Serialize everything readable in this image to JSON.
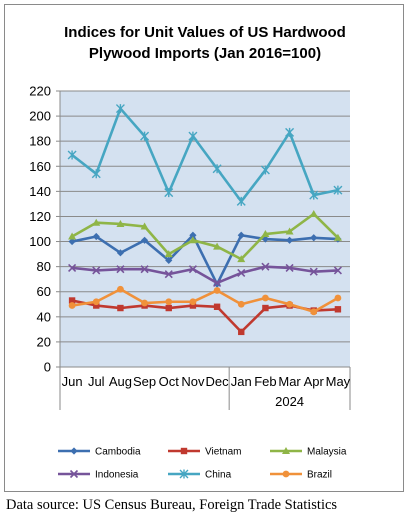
{
  "chart_data": {
    "type": "line",
    "title_lines": [
      "Indices for Unit Values of US Hardwood",
      "Plywood Imports (Jan 2016=100)"
    ],
    "categories": [
      "Jun",
      "Jul",
      "Aug",
      "Sep",
      "Oct",
      "Nov",
      "Dec",
      "Jan",
      "Feb",
      "Mar",
      "Apr",
      "May"
    ],
    "year_group": {
      "label": "2024",
      "start_index": 7
    },
    "ylim": [
      0,
      220
    ],
    "yticks": [
      0,
      20,
      40,
      60,
      80,
      100,
      120,
      140,
      160,
      180,
      200,
      220
    ],
    "grid": "horizontal",
    "plot_background": "#d4e1f0",
    "legend_placement": "bottom",
    "series": [
      {
        "name": "Cambodia",
        "color": "#3d6fb0",
        "marker": "diamond",
        "values": [
          100,
          104,
          91,
          101,
          85,
          105,
          66,
          105,
          102,
          101,
          103,
          102
        ]
      },
      {
        "name": "Vietnam",
        "color": "#c0392f",
        "marker": "square",
        "values": [
          53,
          49,
          47,
          49,
          47,
          49,
          48,
          28,
          47,
          49,
          45,
          46
        ]
      },
      {
        "name": "Malaysia",
        "color": "#8fb547",
        "marker": "triangle",
        "values": [
          104,
          115,
          114,
          112,
          90,
          101,
          96,
          86,
          106,
          108,
          122,
          103
        ]
      },
      {
        "name": "Indonesia",
        "color": "#76549a",
        "marker": "x",
        "values": [
          79,
          77,
          78,
          78,
          74,
          78,
          67,
          75,
          80,
          79,
          76,
          77
        ]
      },
      {
        "name": "China",
        "color": "#46a6c2",
        "marker": "star",
        "values": [
          169,
          154,
          206,
          184,
          139,
          184,
          158,
          132,
          157,
          187,
          137,
          141
        ]
      },
      {
        "name": "Brazil",
        "color": "#f0913a",
        "marker": "circle",
        "values": [
          49,
          52,
          62,
          51,
          52,
          52,
          61,
          50,
          55,
          50,
          44,
          55
        ]
      }
    ]
  },
  "source_note": "Data source: US Census Bureau, Foreign Trade Statistics"
}
